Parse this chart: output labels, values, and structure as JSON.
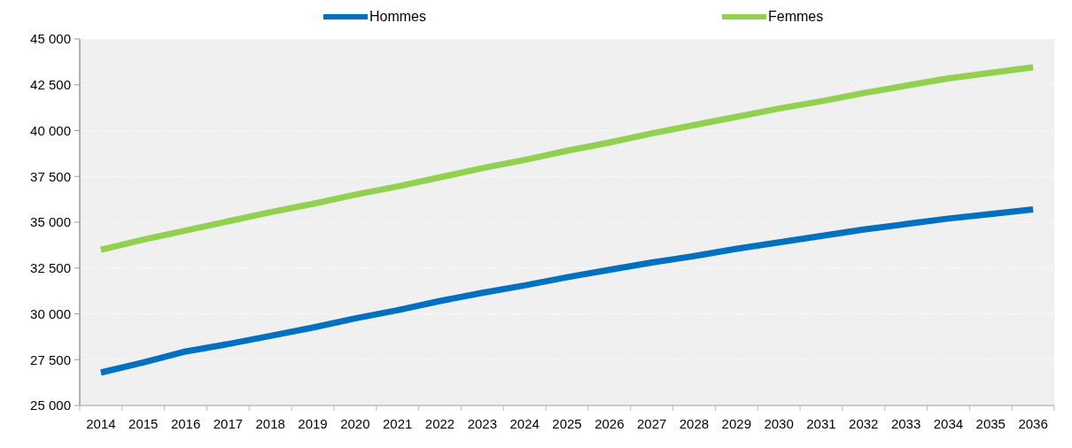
{
  "chart_data": {
    "type": "line",
    "categories": [
      "2014",
      "2015",
      "2016",
      "2017",
      "2018",
      "2019",
      "2020",
      "2021",
      "2022",
      "2023",
      "2024",
      "2025",
      "2026",
      "2027",
      "2028",
      "2029",
      "2030",
      "2031",
      "2032",
      "2033",
      "2034",
      "2035",
      "2036"
    ],
    "series": [
      {
        "name": "Hommes",
        "color": "#0070c0",
        "values": [
          26800,
          27350,
          27950,
          28350,
          28800,
          29250,
          29750,
          30200,
          30700,
          31150,
          31550,
          32000,
          32400,
          32800,
          33150,
          33550,
          33900,
          34250,
          34600,
          34900,
          35200,
          35450,
          35700
        ]
      },
      {
        "name": "Femmes",
        "color": "#92d050",
        "values": [
          33500,
          34050,
          34550,
          35050,
          35550,
          36000,
          36500,
          36950,
          37450,
          37950,
          38400,
          38900,
          39350,
          39850,
          40300,
          40750,
          41200,
          41600,
          42050,
          42450,
          42850,
          43150,
          43450
        ]
      }
    ],
    "ylim": [
      25000,
      45000
    ],
    "yticks": [
      {
        "value": 25000,
        "label": "25 000"
      },
      {
        "value": 27500,
        "label": "27 500"
      },
      {
        "value": 30000,
        "label": "30 000"
      },
      {
        "value": 32500,
        "label": "32 500"
      },
      {
        "value": 35000,
        "label": "35 000"
      },
      {
        "value": 37500,
        "label": "37 500"
      },
      {
        "value": 40000,
        "label": "40 000"
      },
      {
        "value": 42500,
        "label": "42 500"
      },
      {
        "value": 45000,
        "label": "45 000"
      }
    ],
    "grid": "y",
    "legend": "top",
    "marker": "none",
    "line_style": "solid"
  }
}
